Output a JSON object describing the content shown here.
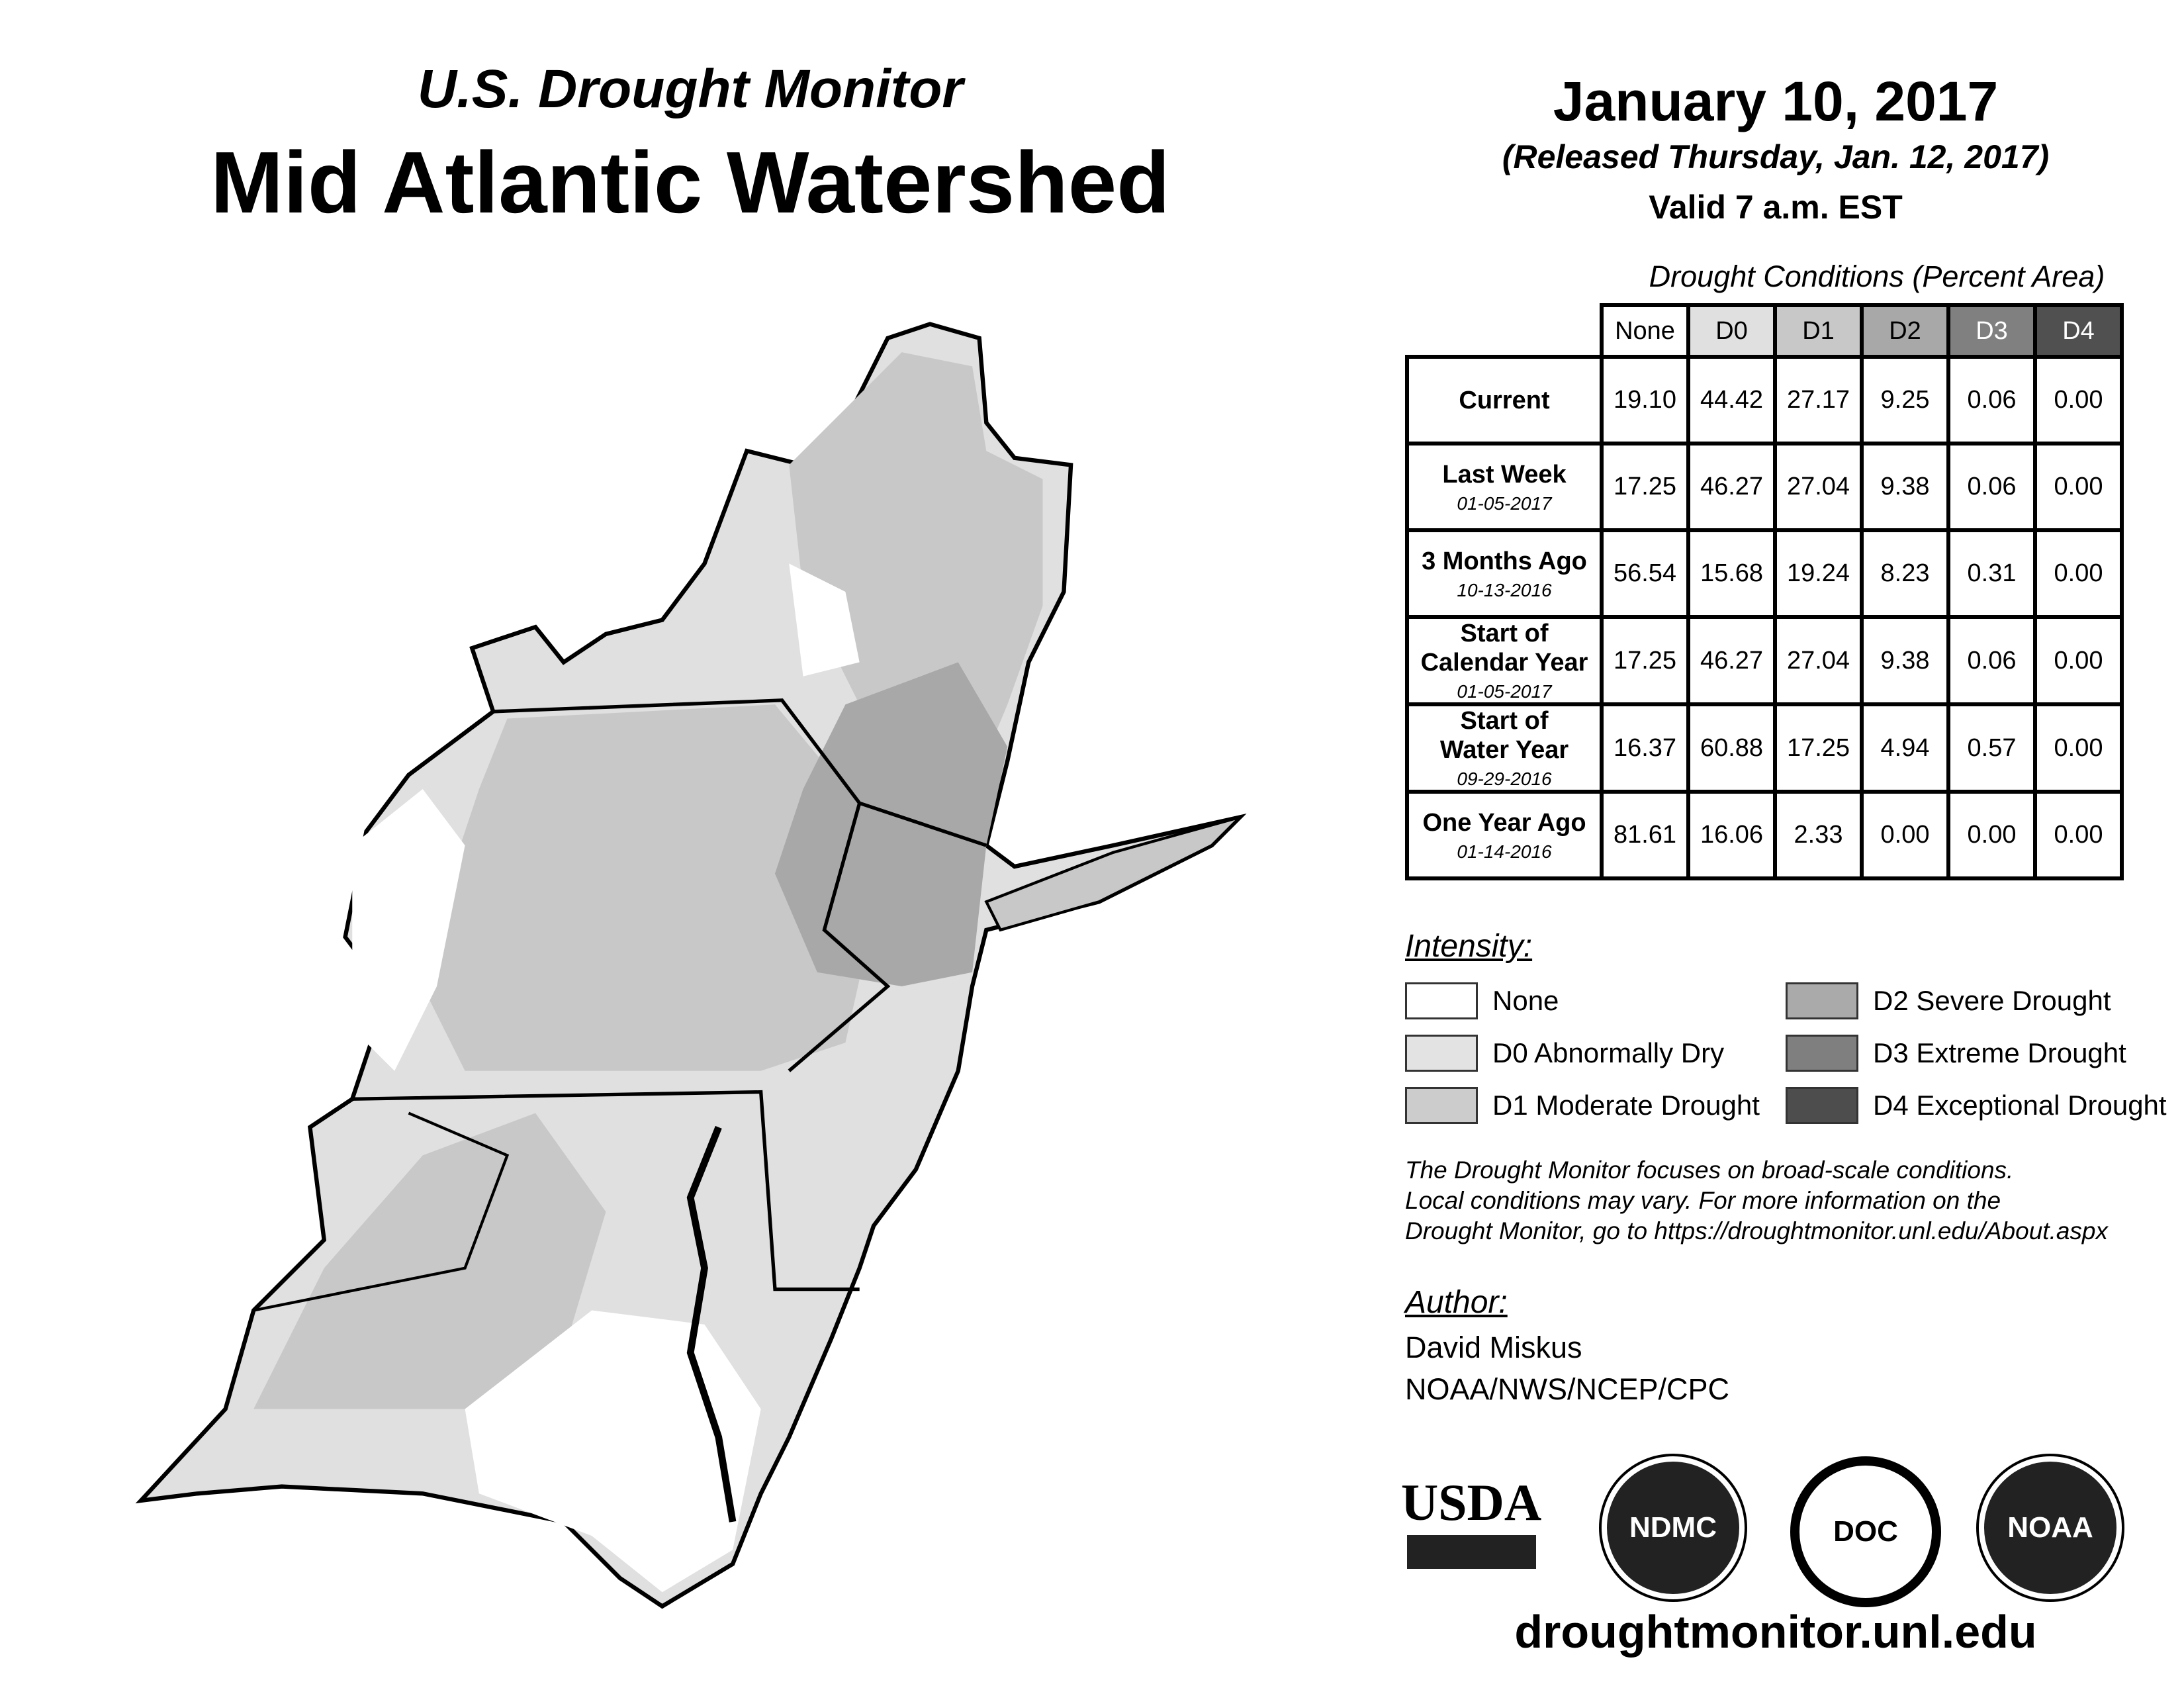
{
  "header": {
    "subtitle": "U.S. Drought Monitor",
    "title": "Mid Atlantic Watershed",
    "date": "January 10, 2017",
    "released": "(Released Thursday, Jan. 12, 2017)",
    "valid": "Valid 7 a.m. EST"
  },
  "table": {
    "title": "Drought Conditions (Percent Area)",
    "columns": [
      "None",
      "D0",
      "D1",
      "D2",
      "D3",
      "D4"
    ],
    "column_colors": [
      "#ffffff",
      "#e0e0e0",
      "#c8c8c8",
      "#a8a8a8",
      "#808080",
      "#505050"
    ],
    "rows": [
      {
        "label": [
          "Current"
        ],
        "date": "",
        "values": [
          "19.10",
          "44.42",
          "27.17",
          "9.25",
          "0.06",
          "0.00"
        ]
      },
      {
        "label": [
          "Last Week"
        ],
        "date": "01-05-2017",
        "values": [
          "17.25",
          "46.27",
          "27.04",
          "9.38",
          "0.06",
          "0.00"
        ]
      },
      {
        "label": [
          "3 Months Ago"
        ],
        "date": "10-13-2016",
        "values": [
          "56.54",
          "15.68",
          "19.24",
          "8.23",
          "0.31",
          "0.00"
        ]
      },
      {
        "label": [
          "Start of",
          "Calendar Year"
        ],
        "date": "01-05-2017",
        "values": [
          "17.25",
          "46.27",
          "27.04",
          "9.38",
          "0.06",
          "0.00"
        ]
      },
      {
        "label": [
          "Start of",
          "Water Year"
        ],
        "date": "09-29-2016",
        "values": [
          "16.37",
          "60.88",
          "17.25",
          "4.94",
          "0.57",
          "0.00"
        ]
      },
      {
        "label": [
          "One Year Ago"
        ],
        "date": "01-14-2016",
        "values": [
          "81.61",
          "16.06",
          "2.33",
          "0.00",
          "0.00",
          "0.00"
        ]
      }
    ]
  },
  "legend": {
    "title": "Intensity:",
    "items": [
      {
        "label": "None",
        "color": "#ffffff"
      },
      {
        "label": "D0 Abnormally Dry",
        "color": "#e3e3e3"
      },
      {
        "label": "D1 Moderate Drought",
        "color": "#cccccc"
      },
      {
        "label": "D2 Severe Drought",
        "color": "#aaaaaa"
      },
      {
        "label": "D3 Extreme Drought",
        "color": "#7f7f7f"
      },
      {
        "label": "D4 Exceptional Drought",
        "color": "#4d4d4d"
      }
    ]
  },
  "note": {
    "line1": "The Drought Monitor focuses on broad-scale conditions.",
    "line2": "Local conditions may vary. For more information on the",
    "line3": "Drought Monitor, go to https://droughtmonitor.unl.edu/About.aspx"
  },
  "author": {
    "label": "Author:",
    "name": "David Miskus",
    "org": "NOAA/NWS/NCEP/CPC"
  },
  "logos": {
    "usda": "USDA",
    "ndmc": "NDMC",
    "doc": "DOC",
    "noaa": "NOAA"
  },
  "footer": {
    "url": "droughtmonitor.unl.edu"
  }
}
